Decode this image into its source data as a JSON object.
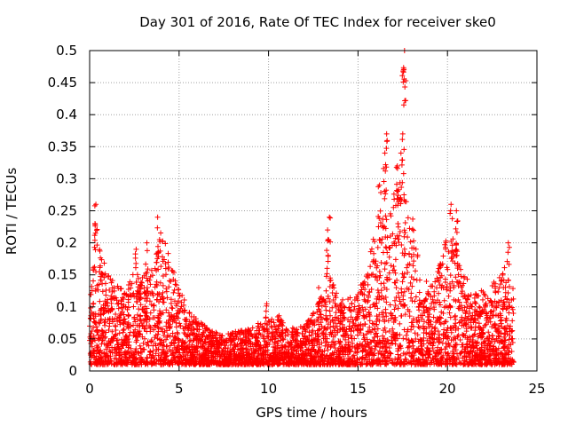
{
  "chart_data": {
    "type": "scatter",
    "title": "Day 301 of 2016, Rate Of TEC Index for receiver ske0",
    "xlabel": "GPS time / hours",
    "ylabel": "ROTI / TECUs",
    "xlim": [
      0,
      25
    ],
    "ylim": [
      0,
      0.5
    ],
    "x_ticks": [
      0,
      5,
      10,
      15,
      20,
      25
    ],
    "y_ticks": [
      0,
      0.05,
      0.1,
      0.15,
      0.2,
      0.25,
      0.3,
      0.35,
      0.4,
      0.45,
      0.5
    ],
    "x_tick_labels": [
      "0",
      "5",
      "10",
      "15",
      "20",
      "25"
    ],
    "y_tick_labels": [
      "0",
      "0.05",
      "0.1",
      "0.15",
      "0.2",
      "0.25",
      "0.3",
      "0.35",
      "0.4",
      "0.45",
      "0.5"
    ],
    "grid": true,
    "marker": "+",
    "series_color": "#ff0000",
    "series": [
      {
        "name": "ROTI",
        "x_range": [
          0,
          23.7
        ],
        "envelope_hours": [
          0,
          0.5,
          1,
          2,
          2.5,
          3,
          3.5,
          4,
          5,
          5.5,
          6,
          7,
          8,
          9,
          10,
          10.5,
          11,
          12,
          12.5,
          13,
          13.5,
          14,
          15,
          15.5,
          16,
          16.5,
          17,
          17.5,
          18,
          18.5,
          19,
          19.5,
          20,
          20.5,
          21,
          21.5,
          22,
          22.5,
          23,
          23.5,
          23.7
        ],
        "envelope_roti": [
          0.16,
          0.2,
          0.15,
          0.13,
          0.16,
          0.15,
          0.17,
          0.22,
          0.13,
          0.1,
          0.08,
          0.06,
          0.06,
          0.07,
          0.08,
          0.09,
          0.07,
          0.07,
          0.09,
          0.12,
          0.15,
          0.11,
          0.12,
          0.17,
          0.22,
          0.25,
          0.28,
          0.3,
          0.25,
          0.16,
          0.13,
          0.16,
          0.22,
          0.2,
          0.15,
          0.12,
          0.13,
          0.14,
          0.15,
          0.18,
          0.12
        ],
        "spikes": [
          {
            "x": 0.3,
            "y": 0.23
          },
          {
            "x": 0.35,
            "y": 0.26
          },
          {
            "x": 2.6,
            "y": 0.19
          },
          {
            "x": 3.2,
            "y": 0.2
          },
          {
            "x": 3.8,
            "y": 0.24
          },
          {
            "x": 9.9,
            "y": 0.105
          },
          {
            "x": 12.8,
            "y": 0.13
          },
          {
            "x": 13.3,
            "y": 0.22
          },
          {
            "x": 13.4,
            "y": 0.24
          },
          {
            "x": 16.2,
            "y": 0.29
          },
          {
            "x": 16.5,
            "y": 0.34
          },
          {
            "x": 16.6,
            "y": 0.37
          },
          {
            "x": 17.2,
            "y": 0.32
          },
          {
            "x": 17.4,
            "y": 0.34
          },
          {
            "x": 17.5,
            "y": 0.37
          },
          {
            "x": 17.55,
            "y": 0.47
          },
          {
            "x": 17.6,
            "y": 0.5
          },
          {
            "x": 20.2,
            "y": 0.26
          },
          {
            "x": 20.5,
            "y": 0.25
          },
          {
            "x": 23.4,
            "y": 0.2
          }
        ],
        "baseline_roti": 0.01
      }
    ]
  }
}
